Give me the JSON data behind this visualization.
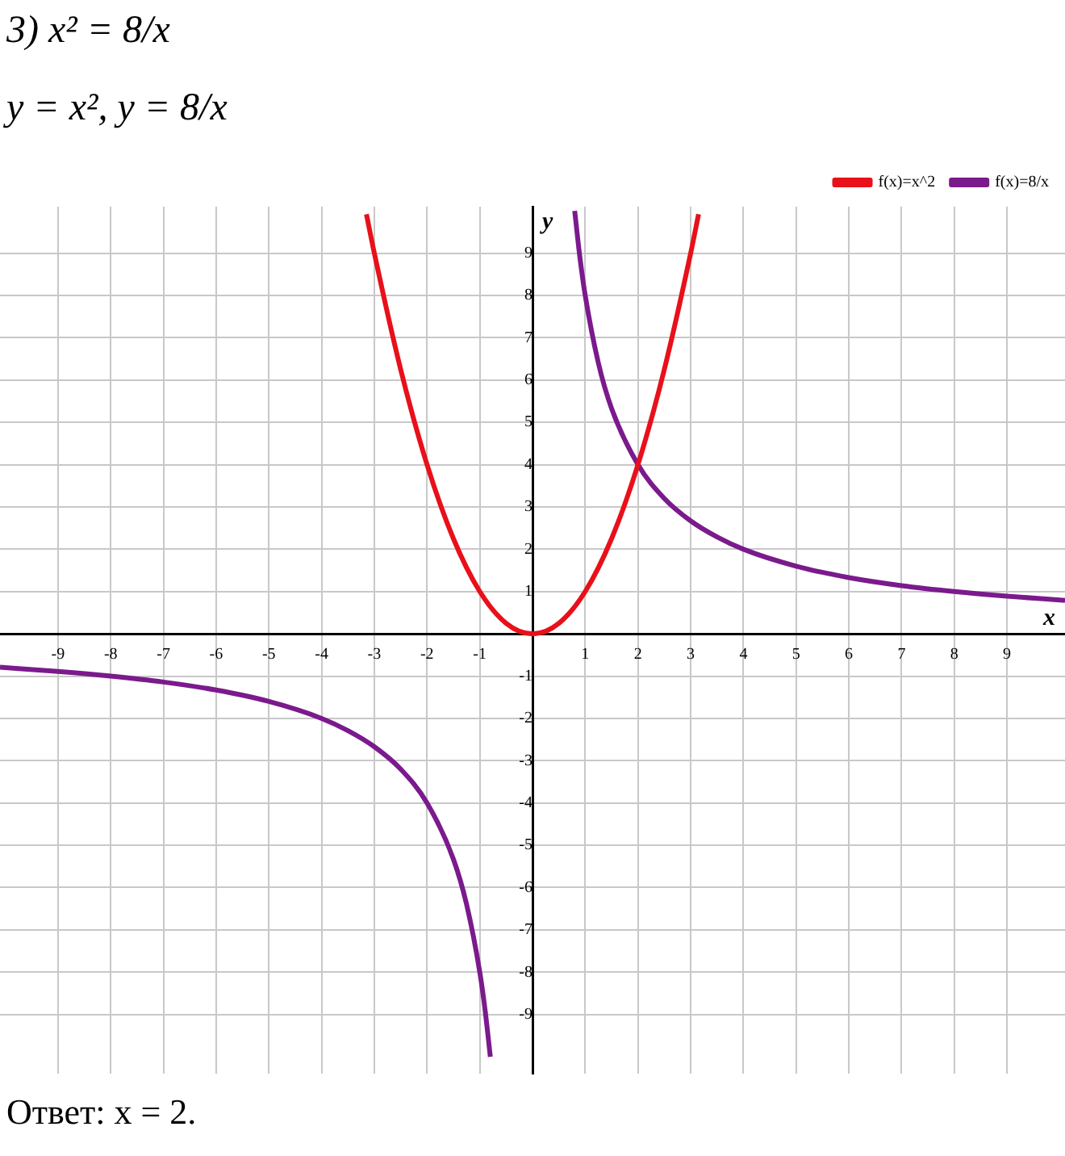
{
  "chart_data": {
    "type": "line",
    "title": "3) x² = 8/x",
    "subtitle": "y = x²,      y = 8/x",
    "xlabel": "x",
    "ylabel": "y",
    "annotations": [
      "Ответ: x = 2."
    ],
    "xlim": [
      -10.1,
      10.1
    ],
    "ylim": [
      -10.4,
      10.1
    ],
    "xticks": [
      -9,
      -8,
      -7,
      -6,
      -5,
      -4,
      -3,
      -2,
      -1,
      {
        "value": 0,
        "label": null
      },
      1,
      2,
      3,
      4,
      5,
      6,
      7,
      8,
      9
    ],
    "yticks": [
      -9,
      -8,
      -7,
      -6,
      -5,
      -4,
      -3,
      -2,
      -1,
      {
        "value": 0,
        "label": null
      },
      1,
      2,
      3,
      4,
      5,
      6,
      7,
      8,
      9
    ],
    "grid": true,
    "legend": "top right",
    "marker": "none",
    "line_style": "solid",
    "series": [
      {
        "name": "f(x)=x^2",
        "color": "#e8101a",
        "x": [
          -3.15,
          -3,
          -2.5,
          -2,
          -1.5,
          -1,
          -0.5,
          0,
          0.5,
          1,
          1.5,
          2,
          2.5,
          3,
          3.15
        ],
        "values": [
          9.92,
          9,
          6.25,
          4,
          2.25,
          1,
          0.25,
          0,
          0.25,
          1,
          2.25,
          4,
          6.25,
          9,
          9.92
        ]
      },
      {
        "name": "f(x)=8/x",
        "color": "#7b1a8c",
        "x": [
          0.8,
          0.9,
          1,
          1.25,
          1.5,
          2,
          2.5,
          3,
          3.5,
          4,
          5,
          6,
          7,
          8,
          9,
          10.1
        ],
        "values": [
          10,
          8.89,
          8,
          6.4,
          5.33,
          4,
          3.2,
          2.67,
          2.29,
          2,
          1.6,
          1.33,
          1.14,
          1,
          0.89,
          0.79
        ]
      },
      {
        "name": null,
        "color": "#7b1a8c",
        "x": [
          -10.1,
          -9,
          -8,
          -7,
          -6,
          -5,
          -4,
          -3.5,
          -3,
          -2.5,
          -2,
          -1.5,
          -1.25,
          -1,
          -0.9,
          -0.8
        ],
        "values": [
          -0.79,
          -0.89,
          -1,
          -1.14,
          -1.33,
          -1.6,
          -2,
          -2.29,
          -2.67,
          -3.2,
          -4,
          -5.33,
          -6.4,
          -8,
          -8.89,
          -10
        ]
      }
    ]
  }
}
